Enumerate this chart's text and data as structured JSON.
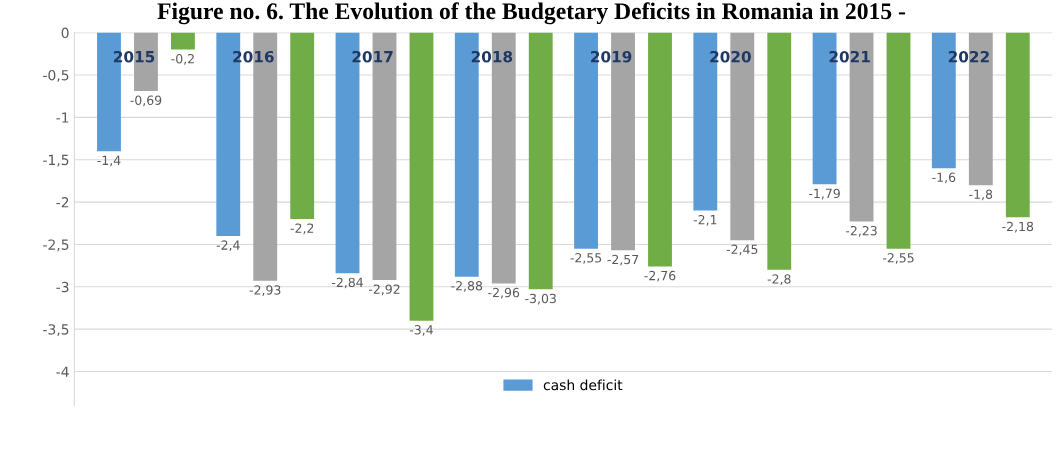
{
  "chart_data": {
    "type": "bar",
    "title": "Figure no. 6. The Evolution of the Budgetary Deficits in Romania in 2015 -",
    "categories": [
      "2015",
      "2016",
      "2017",
      "2018",
      "2019",
      "2020",
      "2021",
      "2022"
    ],
    "series": [
      {
        "name": "cash deficit",
        "color": "#5b9bd5",
        "values": [
          -1.4,
          -2.4,
          -2.84,
          -2.88,
          -2.55,
          -2.1,
          -1.79,
          -1.6
        ],
        "value_labels": [
          "-1,4",
          "-2,4",
          "-2,84",
          "-2,88",
          "-2,55",
          "-2,1",
          "-1,79",
          "-1,6"
        ]
      },
      {
        "color": "#a5a5a5",
        "values": [
          -0.69,
          -2.93,
          -2.92,
          -2.96,
          -2.57,
          -2.45,
          -2.23,
          -1.8
        ],
        "value_labels": [
          "-0,69",
          "-2,93",
          "-2,92",
          "-2,96",
          "-2,57",
          "-2,45",
          "-2,23",
          "-1,8"
        ]
      },
      {
        "color": "#70ad47",
        "values": [
          -0.2,
          -2.2,
          -3.4,
          -3.03,
          -2.76,
          -2.8,
          -2.55,
          -2.18
        ],
        "value_labels": [
          "-0,2",
          "-2,2",
          "-3,4",
          "-3,03",
          "-2,76",
          "-2,8",
          "-2,55",
          "-2,18"
        ]
      }
    ],
    "ylim": [
      -4.4,
      0
    ],
    "yticks": [
      {
        "value": 0,
        "label": "0"
      },
      {
        "value": -0.5,
        "label": "-0,5"
      },
      {
        "value": -1,
        "label": "-1"
      },
      {
        "value": -1.5,
        "label": "-1,5"
      },
      {
        "value": -2,
        "label": "-2"
      },
      {
        "value": -2.5,
        "label": "-2,5"
      },
      {
        "value": -3,
        "label": "-3"
      },
      {
        "value": -3.5,
        "label": "-3,5"
      },
      {
        "value": -4,
        "label": "-4"
      }
    ],
    "grid": "y",
    "legend": "bottom"
  }
}
